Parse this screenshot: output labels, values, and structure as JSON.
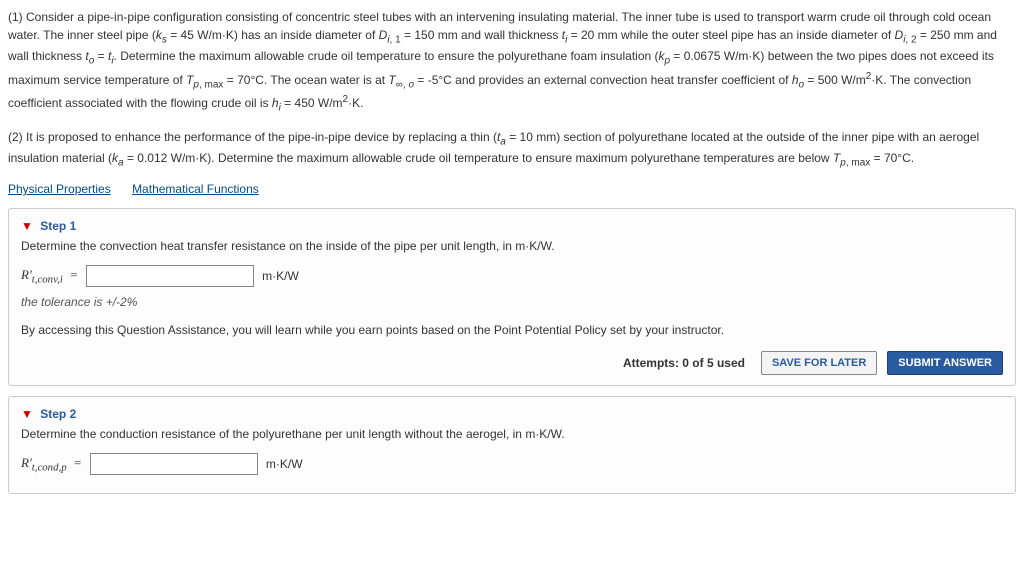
{
  "problem": {
    "part1": "(1) Consider a pipe-in-pipe configuration consisting of concentric steel tubes with an intervening insulating material. The inner tube is used to transport warm crude oil through cold ocean water. The inner steel pipe (kₛ = 45 W/m·K) has an inside diameter of D_{i,1} = 150 mm and wall thickness tᵢ = 20 mm while the outer steel pipe has an inside diameter of D_{i,2} = 250 mm and wall thickness tₒ = tᵢ. Determine the maximum allowable crude oil temperature to ensure the polyurethane foam insulation (k_p = 0.0675 W/m·K) between the two pipes does not exceed its maximum service temperature of T_{p, max} = 70°C. The ocean water is at T_{∞,o} = -5°C and provides an external convection heat transfer coefficient of hₒ = 500 W/m²·K. The convection coefficient associated with the flowing crude oil is hᵢ = 450 W/m²·K.",
    "part2": "(2) It is proposed to enhance the performance of the pipe-in-pipe device by replacing a thin (tₐ = 10 mm) section of polyurethane located at the outside of the inner pipe with an aerogel insulation material (kₐ = 0.012 W/m·K). Determine the maximum allowable crude oil temperature to ensure maximum polyurethane temperatures are below T_{p, max} = 70°C."
  },
  "links": {
    "physical": "Physical Properties",
    "math": "Mathematical Functions"
  },
  "step1": {
    "header": "Step 1",
    "question": "Determine the convection heat transfer resistance on the inside of the pipe per unit length, in m·K/W.",
    "label": "R'_{t,conv,i}  =",
    "unit": "m·K/W",
    "tolerance": "the tolerance is +/-2%",
    "assistance": "By accessing this Question Assistance, you will learn while you earn points based on the Point Potential Policy set by your instructor.",
    "attempts": "Attempts: 0 of 5 used",
    "save": "SAVE FOR LATER",
    "submit": "SUBMIT ANSWER"
  },
  "step2": {
    "header": "Step 2",
    "question": "Determine the conduction resistance of the polyurethane per unit length without the aerogel, in m·K/W.",
    "label": "R'_{t,cond,p}  =",
    "unit": "m·K/W"
  },
  "colors": {
    "link": "#004b87",
    "step_header": "#2a5aa0",
    "arrow": "#cc0000",
    "submit_bg": "#2a5aa0",
    "border": "#cccccc"
  }
}
